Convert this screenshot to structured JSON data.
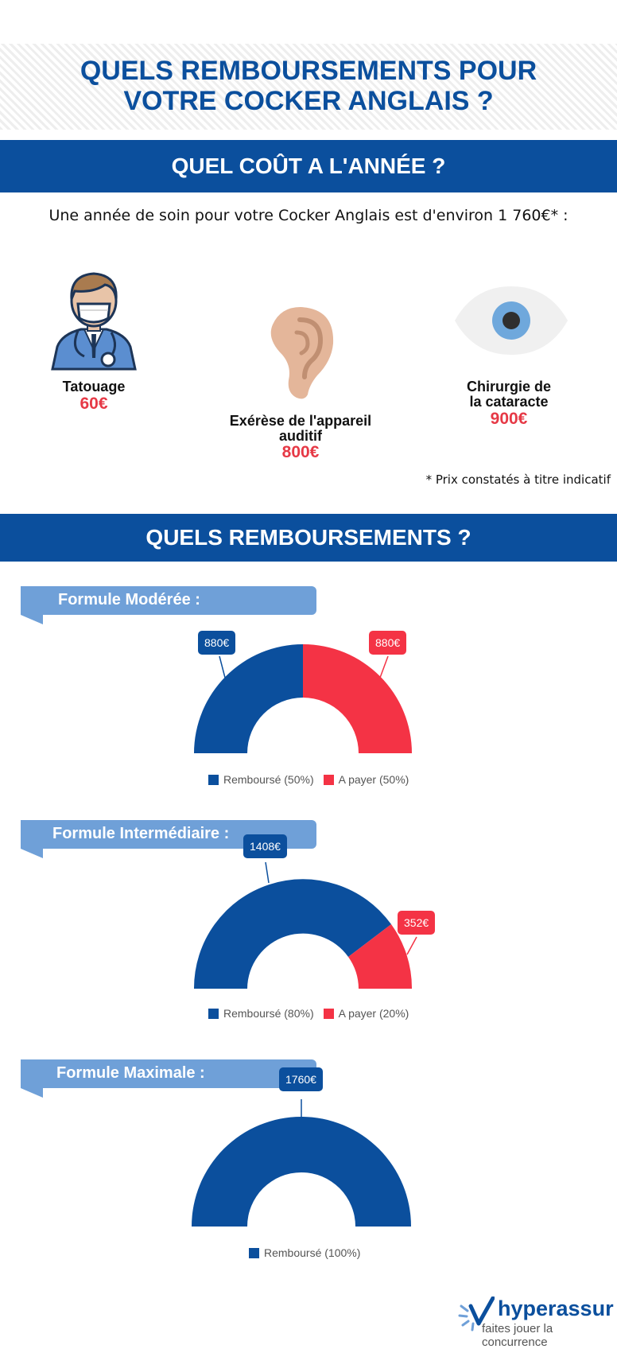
{
  "header": {
    "title_line1": "QUELS REMBOURSEMENTS POUR",
    "title_line2": "VOTRE COCKER ANGLAIS ?"
  },
  "cost_section": {
    "heading": "QUEL COÛT A L'ANNÉE ?",
    "intro": "Une année de soin pour votre Cocker Anglais est d'environ 1 760€* :",
    "items": [
      {
        "label_line1": "Tatouage",
        "label_line2": "",
        "price": "60€",
        "icon": "veterinarian-icon"
      },
      {
        "label_line1": "Exérèse de l'appareil",
        "label_line2": "auditif",
        "price": "800€",
        "icon": "ear-icon"
      },
      {
        "label_line1": "Chirurgie de",
        "label_line2": "la cataracte",
        "price": "900€",
        "icon": "eye-icon"
      }
    ],
    "note": "* Prix constatés à titre indicatif"
  },
  "reimb_section": {
    "heading": "QUELS REMBOURSEMENTS ?"
  },
  "colors": {
    "reimbursed": "#0b4f9d",
    "to_pay": "#f43345",
    "ribbon": "#6fa0d8"
  },
  "chart_data": [
    {
      "type": "pie",
      "title": "Formule Modérée :",
      "categories": [
        "Remboursé (50%)",
        "A payer (50%)"
      ],
      "values": [
        880,
        880
      ],
      "value_labels": [
        "880€",
        "880€"
      ]
    },
    {
      "type": "pie",
      "title": "Formule Intermédiaire :",
      "categories": [
        "Remboursé (80%)",
        "A payer (20%)"
      ],
      "values": [
        1408,
        352
      ],
      "value_labels": [
        "1408€",
        "352€"
      ]
    },
    {
      "type": "pie",
      "title": "Formule Maximale :",
      "categories": [
        "Remboursé (100%)"
      ],
      "values": [
        1760
      ],
      "value_labels": [
        "1760€"
      ]
    }
  ],
  "footer": {
    "logo_text": "hyperassur",
    "slogan": "faites jouer la concurrence"
  }
}
